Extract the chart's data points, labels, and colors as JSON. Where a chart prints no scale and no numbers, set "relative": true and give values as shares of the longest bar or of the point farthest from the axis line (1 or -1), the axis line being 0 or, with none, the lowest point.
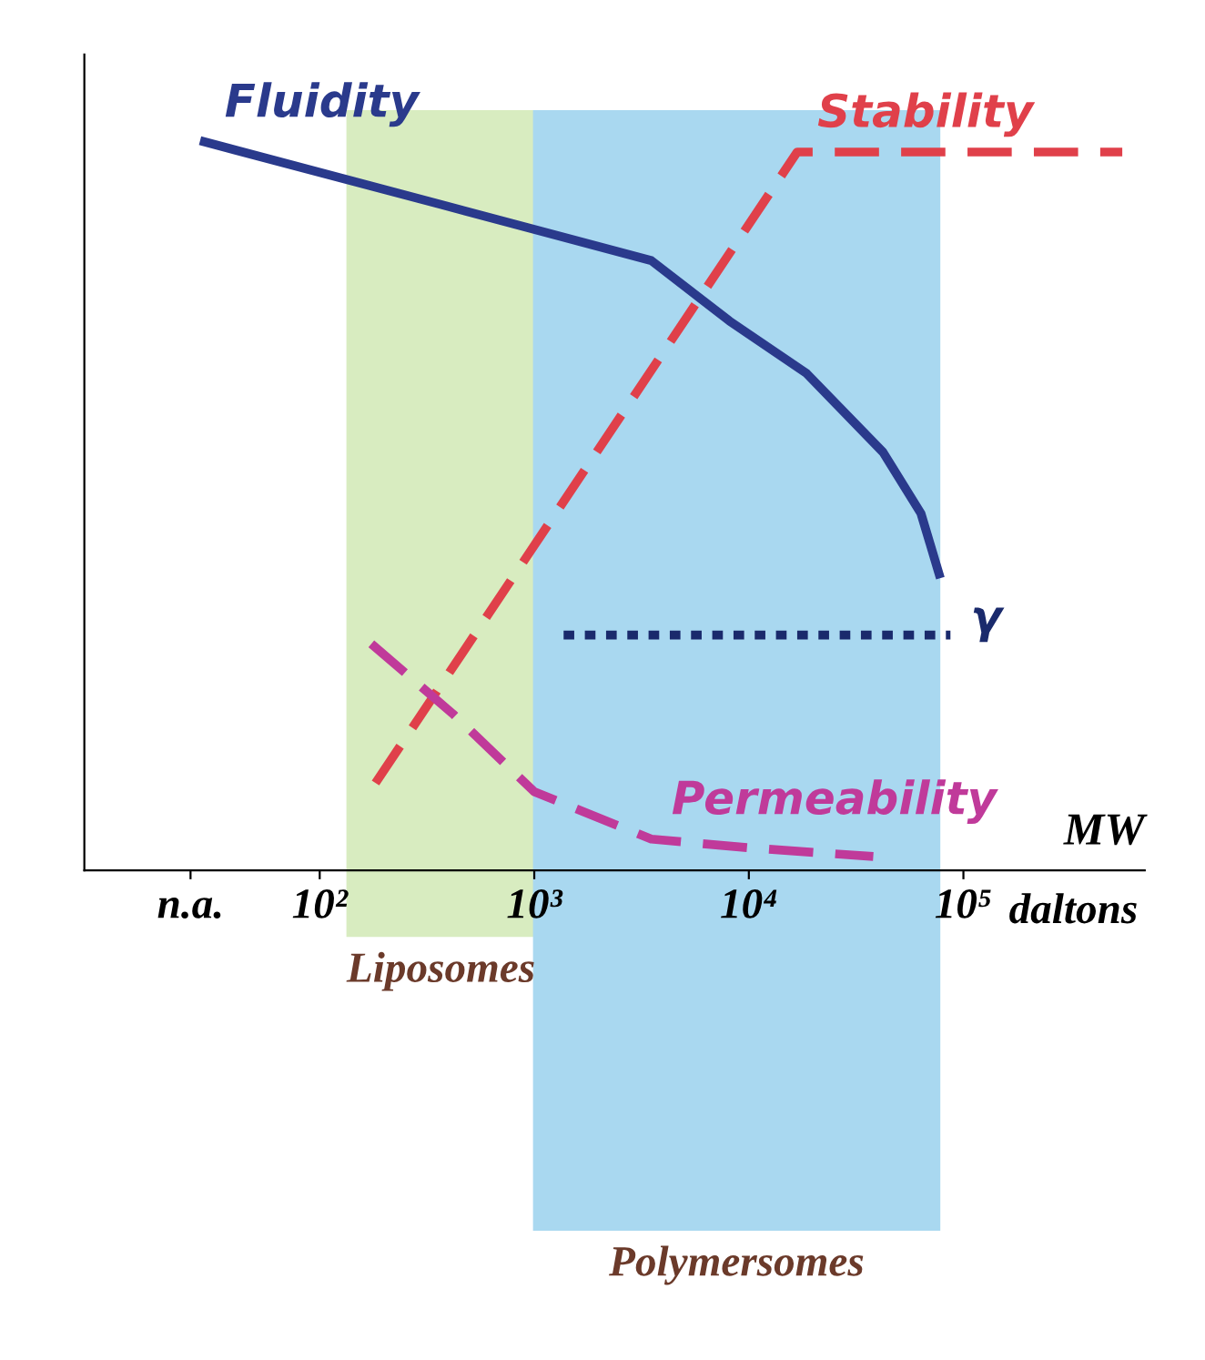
{
  "chart_data": {
    "type": "line",
    "relative": true,
    "xlabel": "MW",
    "log": "x",
    "legend": false,
    "grid": false,
    "xlim": [
      8,
      700000
    ],
    "xticks": [
      {
        "value": 25,
        "label": "n.a."
      },
      {
        "value": 100,
        "label": "10²"
      },
      {
        "value": 1000,
        "label": "10³"
      },
      {
        "value": 10000,
        "label": "10⁴"
      },
      {
        "value": 100000,
        "label": "10⁵"
      }
    ],
    "annotations": [
      "daltons"
    ],
    "series": [
      {
        "name": "Fluidity",
        "color": "#2a3a8c",
        "line_style": "solid",
        "x": [
          29,
          367,
          3510,
          8130,
          18600,
          42200,
          63400,
          77000
        ],
        "values": [
          1.0,
          0.914,
          0.837,
          0.754,
          0.682,
          0.574,
          0.49,
          0.407
        ]
      },
      {
        "name": "Stability",
        "color": "#e0404a",
        "line_style": "dashed",
        "x": [
          182,
          16800,
          550000
        ],
        "values": [
          0.12,
          0.986,
          0.986
        ]
      },
      {
        "name": "Permeability",
        "color": "#c03a9a",
        "line_style": "dashed",
        "x": [
          174,
          417,
          1000,
          3510,
          10000,
          38000
        ],
        "values": [
          0.311,
          0.215,
          0.108,
          0.043,
          0.031,
          0.019
        ]
      },
      {
        "name": "γ",
        "color": "#1a2a6c",
        "line_style": "dotted",
        "x": [
          1370,
          87000
        ],
        "values": [
          0.323,
          0.323
        ]
      }
    ],
    "bands": [
      {
        "axis": "x",
        "from": 135,
        "to": 1000,
        "label": "Liposomes",
        "color": "#d8ecc0"
      },
      {
        "axis": "x",
        "from": 1000,
        "to": 77000,
        "label": "Polymersomes",
        "color": "#a9d8f0"
      }
    ]
  }
}
